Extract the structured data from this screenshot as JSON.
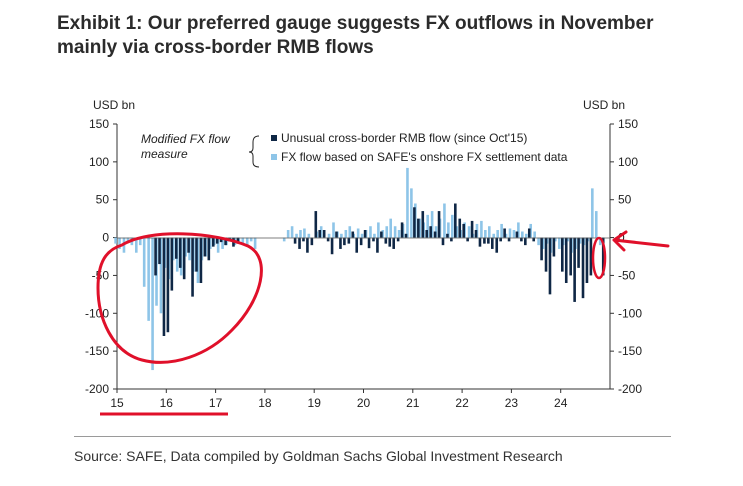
{
  "title_lines": [
    "Exhibit 1: Our preferred gauge suggests FX outflows in November",
    "mainly via cross-border RMB flows"
  ],
  "source": "Source: SAFE, Data compiled by Goldman Sachs Global Investment Research",
  "colors": {
    "dark_series": "#0f2745",
    "light_series": "#8ec5e8",
    "annotation_red": "#e0102a",
    "axis": "#333333"
  },
  "chart_data": {
    "type": "bar",
    "left_unit": "USD bn",
    "right_unit": "USD bn",
    "ylim": [
      -200,
      150
    ],
    "yticks": [
      150,
      100,
      50,
      0,
      -50,
      -100,
      -150,
      -200
    ],
    "xlim": [
      15.0,
      25.0
    ],
    "xticks": [
      "15",
      "16",
      "17",
      "18",
      "19",
      "20",
      "21",
      "22",
      "23",
      "24"
    ],
    "legend_group_label": "Modified FX flow measure",
    "legend_group_lines": [
      "Modified FX flow",
      "measure"
    ],
    "series": [
      {
        "name": "Unusual cross-border RMB flow (since Oct'15)",
        "color": "dark",
        "points": [
          [
            15.75,
            -50
          ],
          [
            15.83,
            -35
          ],
          [
            15.92,
            -130
          ],
          [
            16.0,
            -125
          ],
          [
            16.08,
            -70
          ],
          [
            16.17,
            -28
          ],
          [
            16.25,
            -40
          ],
          [
            16.33,
            -55
          ],
          [
            16.42,
            -20
          ],
          [
            16.5,
            -78
          ],
          [
            16.58,
            -45
          ],
          [
            16.67,
            -60
          ],
          [
            16.75,
            -25
          ],
          [
            16.83,
            -30
          ],
          [
            16.92,
            -12
          ],
          [
            17.0,
            -8
          ],
          [
            17.08,
            -6
          ],
          [
            17.17,
            -10
          ],
          [
            17.25,
            -5
          ],
          [
            17.33,
            -12
          ],
          [
            17.42,
            -8
          ],
          [
            18.58,
            -8
          ],
          [
            18.67,
            -15
          ],
          [
            18.75,
            -5
          ],
          [
            18.83,
            -20
          ],
          [
            18.92,
            -10
          ],
          [
            19.0,
            35
          ],
          [
            19.08,
            10
          ],
          [
            19.17,
            10
          ],
          [
            19.25,
            -5
          ],
          [
            19.33,
            -22
          ],
          [
            19.42,
            8
          ],
          [
            19.5,
            -15
          ],
          [
            19.58,
            -10
          ],
          [
            19.67,
            -8
          ],
          [
            19.75,
            8
          ],
          [
            19.83,
            -20
          ],
          [
            19.92,
            -10
          ],
          [
            20.0,
            10
          ],
          [
            20.08,
            -14
          ],
          [
            20.17,
            -5
          ],
          [
            20.25,
            -20
          ],
          [
            20.33,
            8
          ],
          [
            20.42,
            -8
          ],
          [
            20.5,
            -12
          ],
          [
            20.58,
            -15
          ],
          [
            20.67,
            -5
          ],
          [
            20.75,
            20
          ],
          [
            20.83,
            5
          ],
          [
            21.0,
            40
          ],
          [
            21.08,
            25
          ],
          [
            21.17,
            35
          ],
          [
            21.25,
            10
          ],
          [
            21.33,
            15
          ],
          [
            21.42,
            8
          ],
          [
            21.5,
            35
          ],
          [
            21.58,
            -10
          ],
          [
            21.67,
            5
          ],
          [
            21.75,
            -5
          ],
          [
            21.83,
            45
          ],
          [
            21.92,
            25
          ],
          [
            22.0,
            18
          ],
          [
            22.08,
            -5
          ],
          [
            22.17,
            22
          ],
          [
            22.25,
            10
          ],
          [
            22.33,
            -12
          ],
          [
            22.42,
            -8
          ],
          [
            22.5,
            -8
          ],
          [
            22.58,
            -15
          ],
          [
            22.67,
            -20
          ],
          [
            22.75,
            -5
          ],
          [
            22.83,
            12
          ],
          [
            22.92,
            -5
          ],
          [
            23.08,
            8
          ],
          [
            23.17,
            -5
          ],
          [
            23.25,
            -10
          ],
          [
            23.33,
            12
          ],
          [
            23.42,
            -5
          ],
          [
            23.58,
            -30
          ],
          [
            23.67,
            -45
          ],
          [
            23.75,
            -75
          ],
          [
            23.83,
            -25
          ],
          [
            24.0,
            -45
          ],
          [
            24.08,
            -60
          ],
          [
            24.17,
            -50
          ],
          [
            24.25,
            -85
          ],
          [
            24.33,
            -40
          ],
          [
            24.42,
            -80
          ],
          [
            24.5,
            -60
          ],
          [
            24.58,
            -50
          ],
          [
            24.83,
            -50
          ]
        ]
      },
      {
        "name": "FX flow based on SAFE's onshore FX settlement data",
        "color": "light",
        "points": [
          [
            15.0,
            -8
          ],
          [
            15.08,
            -15
          ],
          [
            15.17,
            -20
          ],
          [
            15.25,
            -5
          ],
          [
            15.33,
            -10
          ],
          [
            15.42,
            -20
          ],
          [
            15.5,
            -10
          ],
          [
            15.58,
            -65
          ],
          [
            15.67,
            -110
          ],
          [
            15.75,
            -175
          ],
          [
            15.83,
            -90
          ],
          [
            15.92,
            -100
          ],
          [
            16.0,
            -40
          ],
          [
            16.08,
            -55
          ],
          [
            16.17,
            -30
          ],
          [
            16.25,
            -45
          ],
          [
            16.33,
            -50
          ],
          [
            16.42,
            -25
          ],
          [
            16.5,
            -30
          ],
          [
            16.58,
            -45
          ],
          [
            16.67,
            -60
          ],
          [
            16.75,
            -30
          ],
          [
            16.83,
            -25
          ],
          [
            16.92,
            -15
          ],
          [
            17.0,
            -10
          ],
          [
            17.08,
            -20
          ],
          [
            17.17,
            -15
          ],
          [
            17.25,
            -10
          ],
          [
            17.33,
            -5
          ],
          [
            17.42,
            -10
          ],
          [
            17.5,
            -5
          ],
          [
            17.58,
            -8
          ],
          [
            17.67,
            -12
          ],
          [
            17.75,
            -5
          ],
          [
            17.83,
            -15
          ],
          [
            18.42,
            -5
          ],
          [
            18.5,
            10
          ],
          [
            18.58,
            15
          ],
          [
            18.67,
            5
          ],
          [
            18.75,
            10
          ],
          [
            18.83,
            12
          ],
          [
            18.92,
            5
          ],
          [
            19.08,
            8
          ],
          [
            19.17,
            15
          ],
          [
            19.33,
            5
          ],
          [
            19.42,
            20
          ],
          [
            19.5,
            8
          ],
          [
            19.58,
            5
          ],
          [
            19.67,
            10
          ],
          [
            19.75,
            15
          ],
          [
            19.83,
            5
          ],
          [
            19.92,
            12
          ],
          [
            20.0,
            5
          ],
          [
            20.08,
            10
          ],
          [
            20.17,
            15
          ],
          [
            20.25,
            5
          ],
          [
            20.33,
            20
          ],
          [
            20.42,
            10
          ],
          [
            20.5,
            15
          ],
          [
            20.58,
            25
          ],
          [
            20.67,
            15
          ],
          [
            20.75,
            10
          ],
          [
            20.83,
            18
          ],
          [
            20.92,
            92
          ],
          [
            21.0,
            65
          ],
          [
            21.08,
            45
          ],
          [
            21.17,
            25
          ],
          [
            21.25,
            20
          ],
          [
            21.33,
            30
          ],
          [
            21.42,
            35
          ],
          [
            21.5,
            15
          ],
          [
            21.58,
            25
          ],
          [
            21.67,
            45
          ],
          [
            21.75,
            20
          ],
          [
            21.83,
            30
          ],
          [
            21.92,
            15
          ],
          [
            22.0,
            10
          ],
          [
            22.08,
            20
          ],
          [
            22.17,
            15
          ],
          [
            22.25,
            5
          ],
          [
            22.33,
            18
          ],
          [
            22.42,
            22
          ],
          [
            22.5,
            10
          ],
          [
            22.58,
            15
          ],
          [
            22.67,
            5
          ],
          [
            22.75,
            10
          ],
          [
            22.83,
            18
          ],
          [
            22.92,
            5
          ],
          [
            23.0,
            12
          ],
          [
            23.08,
            10
          ],
          [
            23.17,
            20
          ],
          [
            23.25,
            8
          ],
          [
            23.33,
            5
          ],
          [
            23.42,
            18
          ],
          [
            23.5,
            8
          ],
          [
            23.58,
            -10
          ],
          [
            23.67,
            -15
          ],
          [
            23.75,
            -8
          ],
          [
            23.83,
            -20
          ],
          [
            23.92,
            -5
          ],
          [
            24.0,
            -15
          ],
          [
            24.08,
            -10
          ],
          [
            24.17,
            -5
          ],
          [
            24.25,
            -20
          ],
          [
            24.33,
            -15
          ],
          [
            24.42,
            -8
          ],
          [
            24.5,
            -10
          ],
          [
            24.58,
            -5
          ],
          [
            24.67,
            65
          ],
          [
            24.75,
            35
          ],
          [
            24.83,
            -10
          ]
        ]
      }
    ]
  }
}
